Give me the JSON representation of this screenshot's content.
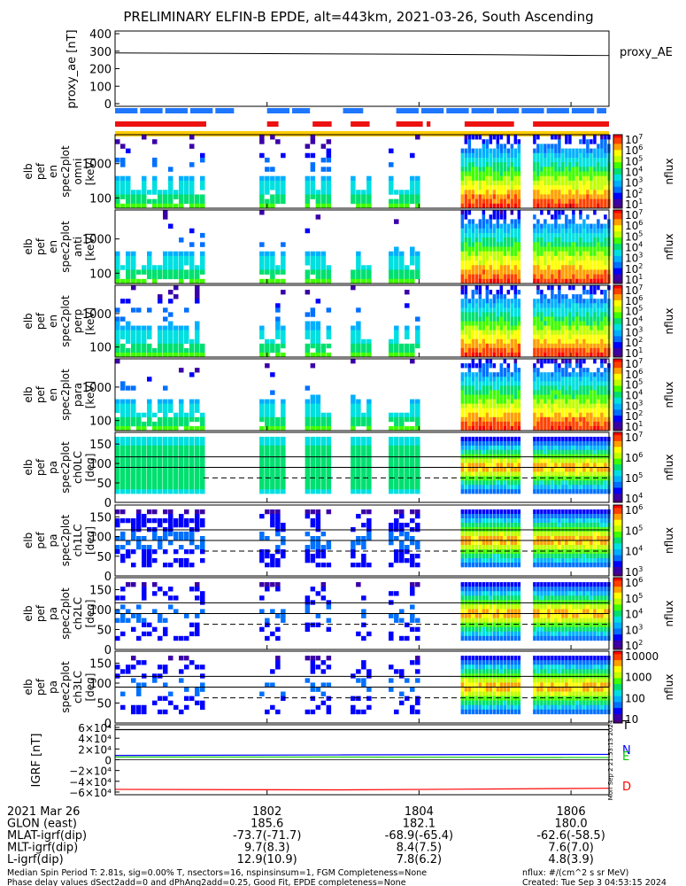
{
  "title": "PRELIMINARY ELFIN-B EPDE, alt=443km, 2021-03-26, South Ascending",
  "colors": {
    "frame": "#000000",
    "blue_bar": "#1f77ff",
    "red_bar": "#ee1111",
    "yellow_bar": "#ffcc00",
    "proxy_line": "#000000",
    "bx": "#000000",
    "by": "#00cc00",
    "bz": "#0000ff",
    "bmag": "#ff0000"
  },
  "chart_data": [
    {
      "type": "line",
      "panel": "proxy_ae",
      "ylabel": "proxy_ae [nT]",
      "legend": "proxy_AE",
      "yticks": [
        "400",
        "300",
        "200",
        "100",
        "0"
      ],
      "ylim": [
        0,
        400
      ],
      "x": [
        1800.0,
        1801.0,
        1802.0,
        1803.0,
        1804.0,
        1805.0,
        1806.0,
        1806.5
      ],
      "values": [
        290,
        288,
        286,
        284,
        282,
        280,
        276,
        275
      ]
    },
    {
      "type": "table",
      "panel": "status_bars",
      "rows": [
        {
          "name": "spin",
          "color": "blue",
          "segments": [
            [
              1800.0,
              1801.6
            ],
            [
              1802.0,
              1802.6
            ],
            [
              1803.0,
              1803.3
            ],
            [
              1803.7,
              1806.5
            ]
          ]
        },
        {
          "name": "science",
          "color": "red",
          "segments": [
            [
              1800.0,
              1801.2
            ],
            [
              1802.0,
              1802.15
            ],
            [
              1802.6,
              1802.85
            ],
            [
              1803.1,
              1803.35
            ],
            [
              1803.7,
              1804.05
            ],
            [
              1804.1,
              1804.15
            ],
            [
              1804.6,
              1805.25
            ],
            [
              1805.5,
              1806.5
            ]
          ]
        },
        {
          "name": "fgm",
          "color": "yellow",
          "segments": [
            [
              1800.0,
              1806.5
            ]
          ]
        }
      ]
    },
    {
      "type": "heatmap",
      "panel": "omni",
      "ylabel": [
        "elb",
        "pef",
        "en",
        "spec2plot",
        "omni",
        "[keV]"
      ],
      "yticks": [
        "1000",
        "100"
      ],
      "colorbar": {
        "label": "nflux",
        "ticks": [
          "10^7",
          "10^6",
          "10^5",
          "10^4",
          "10^3",
          "10^2",
          "10^1"
        ],
        "range": [
          10,
          10000000
        ]
      },
      "active_intervals": [
        [
          1800.0,
          1801.15
        ],
        [
          1801.9,
          1802.2
        ],
        [
          1802.5,
          1802.8
        ],
        [
          1803.1,
          1803.35
        ],
        [
          1803.6,
          1804.0
        ],
        [
          1804.55,
          1805.3
        ],
        [
          1805.5,
          1806.5
        ]
      ]
    },
    {
      "type": "heatmap",
      "panel": "anti",
      "ylabel": [
        "elb",
        "pef",
        "en",
        "spec2plot",
        "anti",
        "[keV]"
      ],
      "yticks": [
        "1000",
        "100"
      ],
      "colorbar": {
        "label": "nflux",
        "ticks": [
          "10^7",
          "10^6",
          "10^5",
          "10^4",
          "10^3",
          "10^2",
          "10^1"
        ],
        "range": [
          10,
          10000000
        ]
      },
      "active_intervals": [
        [
          1800.0,
          1801.15
        ],
        [
          1801.9,
          1802.2
        ],
        [
          1802.5,
          1802.8
        ],
        [
          1803.1,
          1803.35
        ],
        [
          1803.6,
          1804.0
        ],
        [
          1804.55,
          1805.3
        ],
        [
          1805.5,
          1806.5
        ]
      ]
    },
    {
      "type": "heatmap",
      "panel": "perp",
      "ylabel": [
        "elb",
        "pef",
        "en",
        "spec2plot",
        "perp",
        "[keV]"
      ],
      "yticks": [
        "1000",
        "100"
      ],
      "colorbar": {
        "label": "nflux",
        "ticks": [
          "10^7",
          "10^6",
          "10^5",
          "10^4",
          "10^3",
          "10^2",
          "10^1"
        ],
        "range": [
          10,
          10000000
        ]
      },
      "active_intervals": [
        [
          1800.0,
          1801.15
        ],
        [
          1801.9,
          1802.2
        ],
        [
          1802.5,
          1802.8
        ],
        [
          1803.1,
          1803.35
        ],
        [
          1803.6,
          1804.0
        ],
        [
          1804.55,
          1805.3
        ],
        [
          1805.5,
          1806.5
        ]
      ]
    },
    {
      "type": "heatmap",
      "panel": "para",
      "ylabel": [
        "elb",
        "pef",
        "en",
        "spec2plot",
        "para",
        "[keV]"
      ],
      "yticks": [
        "1000",
        "100"
      ],
      "colorbar": {
        "label": "nflux",
        "ticks": [
          "10^7",
          "10^6",
          "10^5",
          "10^4",
          "10^3",
          "10^2",
          "10^1"
        ],
        "range": [
          10,
          10000000
        ]
      },
      "active_intervals": [
        [
          1800.0,
          1801.15
        ],
        [
          1801.9,
          1802.2
        ],
        [
          1802.5,
          1802.8
        ],
        [
          1803.1,
          1803.35
        ],
        [
          1803.6,
          1804.0
        ],
        [
          1804.55,
          1805.3
        ],
        [
          1805.5,
          1806.5
        ]
      ]
    },
    {
      "type": "heatmap",
      "panel": "ch0LC",
      "ylabel": [
        "elb",
        "pef",
        "pa",
        "spec2plot",
        "ch0LC",
        "[deg]"
      ],
      "yticks": [
        "150",
        "100",
        "50",
        "0"
      ],
      "ylim": [
        0,
        180
      ],
      "ref_lines": [
        117,
        90,
        63
      ],
      "colorbar": {
        "label": "nflux",
        "ticks": [
          "10^7",
          "10^6",
          "10^5",
          "10^4"
        ],
        "range": [
          3000,
          10000000
        ]
      },
      "active_intervals": [
        [
          1800.0,
          1801.15
        ],
        [
          1801.9,
          1802.2
        ],
        [
          1802.5,
          1802.8
        ],
        [
          1803.1,
          1803.35
        ],
        [
          1803.6,
          1804.0
        ],
        [
          1804.55,
          1805.3
        ],
        [
          1805.5,
          1806.5
        ]
      ]
    },
    {
      "type": "heatmap",
      "panel": "ch1LC",
      "ylabel": [
        "elb",
        "pef",
        "pa",
        "spec2plot",
        "ch1LC",
        "[deg]"
      ],
      "yticks": [
        "150",
        "100",
        "50",
        "0"
      ],
      "ylim": [
        0,
        180
      ],
      "ref_lines": [
        117,
        90,
        63
      ],
      "colorbar": {
        "label": "nflux",
        "ticks": [
          "10^6",
          "10^5",
          "10^4",
          "10^3"
        ],
        "range": [
          1000,
          3000000
        ]
      },
      "active_intervals": [
        [
          1800.0,
          1801.15
        ],
        [
          1801.9,
          1802.2
        ],
        [
          1802.5,
          1802.8
        ],
        [
          1803.1,
          1803.35
        ],
        [
          1803.6,
          1804.0
        ],
        [
          1804.55,
          1805.3
        ],
        [
          1805.5,
          1806.5
        ]
      ]
    },
    {
      "type": "heatmap",
      "panel": "ch2LC",
      "ylabel": [
        "elb",
        "pef",
        "pa",
        "spec2plot",
        "ch2LC",
        "[deg]"
      ],
      "yticks": [
        "150",
        "100",
        "50",
        "0"
      ],
      "ylim": [
        0,
        180
      ],
      "ref_lines": [
        117,
        90,
        63
      ],
      "colorbar": {
        "label": "nflux",
        "ticks": [
          "10^6",
          "10^5",
          "10^4",
          "10^3",
          "10^2"
        ],
        "range": [
          100,
          3000000
        ]
      },
      "active_intervals": [
        [
          1800.0,
          1801.15
        ],
        [
          1801.9,
          1802.2
        ],
        [
          1802.5,
          1802.8
        ],
        [
          1803.1,
          1803.35
        ],
        [
          1803.6,
          1804.0
        ],
        [
          1804.55,
          1805.3
        ],
        [
          1805.5,
          1806.5
        ]
      ]
    },
    {
      "type": "heatmap",
      "panel": "ch3LC",
      "ylabel": [
        "elb",
        "pef",
        "pa",
        "spec2plot",
        "ch3LC",
        "[deg]"
      ],
      "yticks": [
        "150",
        "100",
        "50",
        "0"
      ],
      "ylim": [
        0,
        180
      ],
      "ref_lines": [
        117,
        90,
        63
      ],
      "colorbar": {
        "label": "nflux",
        "ticks": [
          "10000",
          "1000",
          "100",
          "10"
        ],
        "range": [
          10,
          30000
        ]
      },
      "active_intervals": [
        [
          1800.0,
          1801.15
        ],
        [
          1801.9,
          1802.2
        ],
        [
          1802.5,
          1802.8
        ],
        [
          1803.1,
          1803.35
        ],
        [
          1803.6,
          1804.0
        ],
        [
          1804.55,
          1805.3
        ],
        [
          1805.5,
          1806.5
        ]
      ]
    },
    {
      "type": "line",
      "panel": "IGRF",
      "ylabel": "IGRF [nT]",
      "yticks": [
        "6×10⁴",
        "4×10⁴",
        "2×10⁴",
        "0",
        "−2×10⁴",
        "−4×10⁴",
        "−6×10⁴"
      ],
      "ylim": [
        -65000,
        65000
      ],
      "legend": [
        "T",
        "N",
        "E",
        "D"
      ],
      "side_label": "Mon Sep  2 21:53:13 2024",
      "series": [
        {
          "name": "T",
          "x": [
            1800.0,
            1803.0,
            1806.5
          ],
          "values": [
            56000,
            56000,
            56000
          ]
        },
        {
          "name": "N",
          "x": [
            1800.0,
            1803.0,
            1806.5
          ],
          "values": [
            8000,
            9000,
            10000
          ]
        },
        {
          "name": "E",
          "x": [
            1800.0,
            1803.0,
            1806.5
          ],
          "values": [
            5000,
            5000,
            4000
          ]
        },
        {
          "name": "D",
          "x": [
            1800.0,
            1803.0,
            1806.5
          ],
          "values": [
            -55000,
            -56000,
            -53000
          ]
        }
      ]
    }
  ],
  "xaxis": {
    "ticks": [
      1802,
      1804,
      1806
    ],
    "rows": [
      {
        "label": "2021 Mar 26",
        "values": [
          "1802",
          "1804",
          "1806"
        ]
      },
      {
        "label": "GLON (east)",
        "values": [
          "185.6",
          "182.1",
          "180.0"
        ]
      },
      {
        "label": "MLAT-igrf(dip)",
        "values": [
          "-73.7(-71.7)",
          "-68.9(-65.4)",
          "-62.6(-58.5)"
        ]
      },
      {
        "label": "MLT-igrf(dip)",
        "values": [
          "9.7(8.3)",
          "8.4(7.5)",
          "7.6(7.0)"
        ]
      },
      {
        "label": "L-igrf(dip)",
        "values": [
          "12.9(10.9)",
          "7.8(6.2)",
          "4.8(3.9)"
        ]
      }
    ]
  },
  "footer": {
    "line1_left": "Median Spin Period T: 2.81s, sig=0.00% T, nsectors=16, nspinsinsum=1, FGM Completeness=None",
    "line2_left": "Phase delay values dSect2add=0 and dPhAng2add=0.25, Good Fit, EPDE completeness=None",
    "line1_right": "nflux: #/(cm^2 s sr MeV)",
    "line2_right": "Created: Tue Sep  3 04:53:15 2024"
  }
}
